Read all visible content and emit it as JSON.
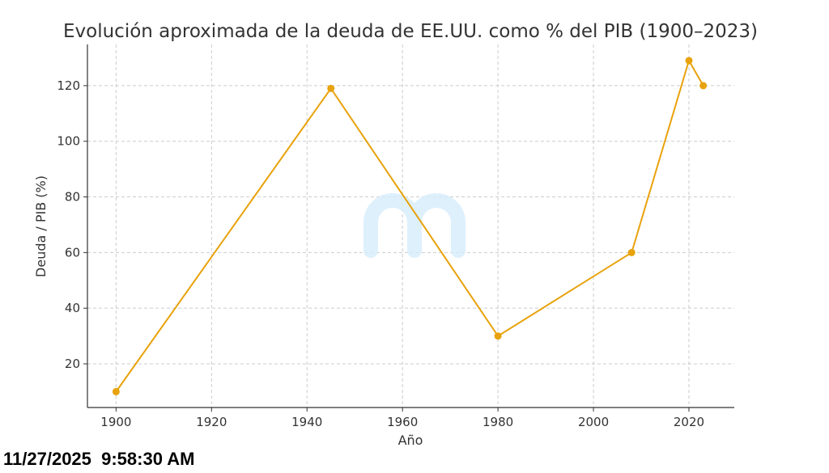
{
  "chart_data": {
    "type": "line",
    "title": "Evolución aproximada de la deuda de EE.UU. como % del PIB (1900–2023)",
    "xlabel": "Año",
    "ylabel": "Deuda / PIB (%)",
    "x": [
      1900,
      1945,
      1980,
      2008,
      2020,
      2023
    ],
    "series": [
      {
        "name": "Deuda / PIB",
        "values": [
          10,
          119,
          30,
          60,
          129,
          120
        ],
        "color": "#e8a20c"
      }
    ],
    "xlim": [
      1894,
      2029.5
    ],
    "ylim": [
      4.3,
      134.8
    ],
    "xticks": [
      1900,
      1920,
      1940,
      1960,
      1980,
      2000,
      2020
    ],
    "yticks": [
      20,
      40,
      60,
      80,
      100,
      120
    ],
    "grid": true,
    "watermark_color": "#d6ecfb"
  },
  "timestamp": "11/27/2025  9:58:30 AM"
}
